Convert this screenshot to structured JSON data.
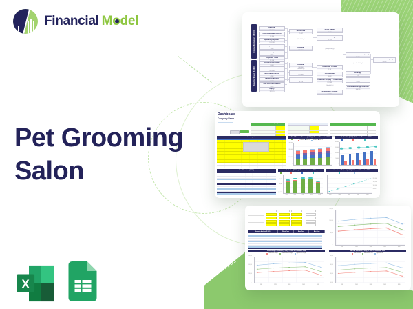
{
  "brand": {
    "word1": "Financial",
    "word2": "Model"
  },
  "hero": {
    "line1": "Pet Grooming",
    "line2": "Salon"
  },
  "platforms": {
    "excel_letter": "X"
  },
  "accents": {
    "navy": "#23235c",
    "green": "#8dc63f",
    "yellow": "#ffff00",
    "teal": "#49c6c2"
  },
  "flowchart": {
    "sidebar_income": "Income Statement ($ 000)",
    "sidebar_balance": "Balance Sheet ($ 000)",
    "col1": [
      {
        "label": "Revenue",
        "value": "216,800"
      },
      {
        "label": "Cost of Revenue (COGS)",
        "value": "16,880"
      },
      {
        "label": "Operating Expenses",
        "value": "121,768"
      },
      {
        "label": "Depreciation",
        "value": "7,382"
      },
      {
        "label": "Interest Expense",
        "value": "3,137"
      },
      {
        "label": "Corporate Taxes",
        "value": "20,576"
      },
      {
        "label": "Accounts Receivable",
        "value": "8,083"
      },
      {
        "label": "Current Assets",
        "value": "162,808"
      },
      {
        "label": "Non-Current Assets",
        "value": "4,581"
      },
      {
        "label": "Current Liabilities",
        "value": "8,083"
      },
      {
        "label": "Non-Current Liabilities",
        "value": "2,191"
      },
      {
        "label": "Equity",
        "value": "157,115"
      }
    ],
    "col2": [
      {
        "label": "Net Income",
        "value": "47,057"
      },
      {
        "op": "(divided by)"
      },
      {
        "label": "Revenue",
        "value": "216,800"
      },
      {
        "label": "Revenue",
        "value": "216,800"
      },
      {
        "op": "(divided by)"
      },
      {
        "label": "Total Assets",
        "value": "167,389"
      },
      {
        "label": "Total Liabilities",
        "value": "10,274"
      }
    ],
    "col3": [
      {
        "label": "Gross Margin",
        "value": "92.2%"
      },
      {
        "label": "Net Profit Margin",
        "value": "21.7%"
      },
      {
        "op": "(multiplied by)"
      },
      {
        "label": "Total Asset Turnover",
        "value": "1.30"
      },
      {
        "label": "A/R Turnover",
        "value": "26.82"
      },
      {
        "label": "Total Liab + Equity = Total Assets",
        "value": "167,389"
      },
      {
        "op": "(divided by)"
      },
      {
        "label": "Shareholder's Equity",
        "value": "157,115"
      }
    ],
    "col4": [
      {
        "label": "Return on Total Assets (ROA)",
        "value": "28.1%"
      },
      {
        "op": "(multiplied by)"
      },
      {
        "label": "Leverage",
        "value": "1.07"
      },
      {
        "label": "Current Ratio",
        "value": "20.14"
      },
      {
        "label": "Financial Leverage Multiplier",
        "value": "106.5%"
      }
    ],
    "col5": [
      {
        "label": "Return on Equity (ROE)",
        "value": "29.9%"
      }
    ]
  },
  "dashboard": {
    "title": "Dashboard",
    "company": "Company Name",
    "assumptions_title": "5 YEARLY ASSUMPTIONS (1 to 5)",
    "assumptions2_title": "ANNUAL OPERATING ASSUMPTIONS",
    "core_inputs_title": "Core Inputs",
    "core_financials_title": "Core Financials ($ 000)",
    "categories": [
      "2022",
      "2023",
      "2024",
      "2025",
      "2026"
    ],
    "charts": [
      {
        "type": "stacked-bar",
        "title": "Top 5 Revenue Streams ($ 000) | 5 Years to December 2026",
        "ticks": [
          "300,000",
          "200,000",
          "100,000",
          "-"
        ],
        "series": [
          {
            "name": "Revenue Stream 1",
            "color": "#70ad47",
            "values": [
              98,
              103,
              108,
              114,
              120
            ]
          },
          {
            "name": "Revenue Stream 2",
            "color": "#4472c4",
            "values": [
              52,
              55,
              58,
              61,
              64
            ]
          },
          {
            "name": "Revenue Stream 3",
            "color": "#7b5ea7",
            "values": [
              30,
              32,
              34,
              36,
              38
            ]
          },
          {
            "name": "Revenue Stream 4",
            "color": "#f4756f",
            "values": [
              37,
              39,
              41,
              44,
              46
            ]
          },
          {
            "name": "Revenue Stream 5",
            "color": "#9dc3e6",
            "values": [
              8,
              9,
              9,
              10,
              11
            ]
          }
        ]
      },
      {
        "type": "bars-line",
        "title": "Profitability ($ 000) | 5 Years to December 2026",
        "ticks": [
          "200,000",
          "150,000",
          "100,000",
          "50,000",
          "-"
        ],
        "legend": [
          {
            "name": "Total Revenue",
            "color": "#4472c4"
          },
          {
            "name": "Total Expenses",
            "color": "#f4756f"
          },
          {
            "name": "Net Profit",
            "color": "#49c6c2"
          }
        ],
        "bars": [
          {
            "name": "Total Revenue",
            "color": "#4472c4",
            "values": [
              150,
              160,
              170,
              181,
              192
            ]
          },
          {
            "name": "Total Expenses",
            "color": "#f4756f",
            "values": [
              66,
              70,
              74,
              78,
              82
            ]
          }
        ],
        "line": {
          "name": "Net Profit",
          "color": "#49c6c2",
          "values": [
            72,
            74,
            76,
            78,
            81
          ]
        }
      },
      {
        "type": "bar",
        "title": "Cash Flow ($ 000) | 5 Years to December 2026",
        "ticks": [
          "60,000",
          "40,000",
          "20,000",
          "-",
          "(20,000)"
        ],
        "legend": [
          {
            "name": "Cash Inflows",
            "color": "#70ad47"
          },
          {
            "name": "Cash Outflows",
            "color": "#f4756f"
          },
          {
            "name": "Net Cash Flow",
            "color": "#4472c4"
          },
          {
            "name": "Cash Balance",
            "color": "#49c6c2"
          }
        ],
        "values": [
          30,
          34,
          36,
          36,
          27
        ]
      },
      {
        "type": "line",
        "title": "Investment Payback ($ 000) | 5 Years to December 2026",
        "ticks": [
          "250,000",
          "200,000",
          "150,000",
          "100,000",
          "50,000",
          "-"
        ],
        "legend": [
          {
            "name": "Cumulative Cash Flow",
            "color": "#49c6c2"
          },
          {
            "name": "Initial Investment",
            "color": "#9dc3e6"
          }
        ],
        "values": [
          10,
          24,
          38,
          52,
          66,
          80
        ]
      }
    ]
  },
  "scenarios": {
    "years": [
      "2022",
      "2023",
      "2024",
      "2025",
      "2026"
    ],
    "table_header": [
      "Scenario Analysis ($ 000)",
      "Worst Case",
      "Base Case",
      "Best Case"
    ],
    "charts": [
      {
        "title": "",
        "ticks": [
          "150,000",
          "100,000",
          "50,000",
          "-"
        ],
        "series": [
          {
            "color": "#9dc3e6",
            "values": [
              68,
              73,
              76,
              78,
              60
            ]
          },
          {
            "color": "#93c47d",
            "values": [
              53,
              57,
              60,
              62,
              44
            ]
          },
          {
            "color": "#f4877f",
            "values": [
              40,
              44,
              47,
              49,
              30
            ]
          }
        ]
      },
      {
        "title": "Gross Margin Scenarios ($ 000) | 5 Years to December 2026",
        "ticks": [
          "60,000",
          "40,000",
          "20,000",
          "-"
        ],
        "legend": [
          {
            "name": "Low Gross Margin",
            "color": "#f4877f"
          },
          {
            "name": "Medium Gross Margin",
            "color": "#93c47d"
          },
          {
            "name": "High Gross Margin",
            "color": "#9dc3e6"
          }
        ],
        "series": [
          {
            "color": "#9dc3e6",
            "values": [
              68,
              73,
              76,
              78,
              60
            ]
          },
          {
            "color": "#93c47d",
            "values": [
              53,
              57,
              60,
              62,
              44
            ]
          },
          {
            "color": "#f4877f",
            "values": [
              40,
              44,
              47,
              49,
              30
            ]
          }
        ]
      },
      {
        "title": "EBITDA Scenarios ($ 000) | 5 Years to December 2026",
        "ticks": [
          "40,000",
          "30,000",
          "20,000",
          "10,000"
        ],
        "legend": [
          {
            "name": "Low EBITDA",
            "color": "#f4877f"
          },
          {
            "name": "Medium EBITDA",
            "color": "#93c47d"
          },
          {
            "name": "High EBITDA",
            "color": "#9dc3e6"
          }
        ],
        "series": [
          {
            "color": "#9dc3e6",
            "values": [
              66,
              71,
              74,
              76,
              58
            ]
          },
          {
            "color": "#93c47d",
            "values": [
              50,
              54,
              57,
              59,
              41
            ]
          },
          {
            "color": "#f4877f",
            "values": [
              37,
              41,
              44,
              46,
              27
            ]
          }
        ]
      }
    ]
  }
}
